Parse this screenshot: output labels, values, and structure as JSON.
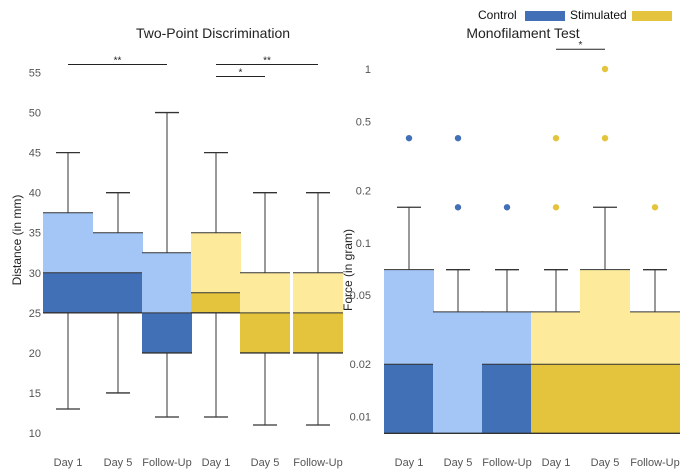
{
  "legend": {
    "entries": [
      {
        "label": "Control",
        "color": "#4270b6"
      },
      {
        "label": "Stimulated",
        "color": "#e3c43c"
      }
    ]
  },
  "colors": {
    "control_dark": "#4270b6",
    "control_light": "#a3c6f7",
    "stim_dark": "#e3c43c",
    "stim_light": "#fdeb9b"
  },
  "chart_data": [
    {
      "type": "box",
      "title": "Two-Point Discrimination",
      "xlabel": "",
      "ylabel": "Distance (in mm)",
      "ylim": [
        10,
        57
      ],
      "yscale": "linear",
      "yticks": [
        10,
        15,
        20,
        25,
        30,
        35,
        40,
        45,
        50,
        55
      ],
      "categories": [
        "Day 1",
        "Day 5",
        "Follow-Up",
        "Day 1",
        "Day 5",
        "Follow-Up"
      ],
      "groups": [
        "Control",
        "Control",
        "Control",
        "Stimulated",
        "Stimulated",
        "Stimulated"
      ],
      "boxes": [
        {
          "min": 13,
          "q1": 25,
          "median": 30,
          "q3": 37.5,
          "max": 45,
          "outliers": []
        },
        {
          "min": 15,
          "q1": 25,
          "median": 30,
          "q3": 35,
          "max": 40,
          "outliers": []
        },
        {
          "min": 12,
          "q1": 20,
          "median": 25,
          "q3": 32.5,
          "max": 50,
          "outliers": []
        },
        {
          "min": 12,
          "q1": 25,
          "median": 27.5,
          "q3": 35,
          "max": 45,
          "outliers": []
        },
        {
          "min": 11,
          "q1": 20,
          "median": 25,
          "q3": 30,
          "max": 40,
          "outliers": []
        },
        {
          "min": 11,
          "q1": 20,
          "median": 25,
          "q3": 30,
          "max": 40,
          "outliers": []
        }
      ],
      "significance": [
        {
          "from": 0,
          "to": 2,
          "label": "**",
          "y": 56
        },
        {
          "from": 3,
          "to": 5,
          "label": "**",
          "y": 56
        },
        {
          "from": 3,
          "to": 4,
          "label": "*",
          "y": 54.5
        }
      ]
    },
    {
      "type": "box",
      "title": "Monofilament Test",
      "xlabel": "",
      "ylabel": "Force (in gram)",
      "ylim": [
        0.007,
        1.35
      ],
      "yscale": "log",
      "yticks": [
        0.01,
        0.02,
        0.05,
        0.1,
        0.2,
        0.5,
        1
      ],
      "ytick_labels": [
        "0.01",
        "0.02",
        "0.05",
        "0.1",
        "0.2",
        "0.5",
        "1"
      ],
      "categories": [
        "Day 1",
        "Day 5",
        "Follow-Up",
        "Day 1",
        "Day 5",
        "Follow-Up"
      ],
      "groups": [
        "Control",
        "Control",
        "Control",
        "Stimulated",
        "Stimulated",
        "Stimulated"
      ],
      "boxes": [
        {
          "min": 0.008,
          "q1": 0.008,
          "median": 0.02,
          "q3": 0.07,
          "max": 0.16,
          "outliers": [
            0.4
          ]
        },
        {
          "min": 0.008,
          "q1": 0.008,
          "median": 0.008,
          "q3": 0.04,
          "max": 0.07,
          "outliers": [
            0.16,
            0.4
          ]
        },
        {
          "min": 0.008,
          "q1": 0.008,
          "median": 0.02,
          "q3": 0.04,
          "max": 0.07,
          "outliers": [
            0.16
          ]
        },
        {
          "min": 0.008,
          "q1": 0.008,
          "median": 0.02,
          "q3": 0.04,
          "max": 0.07,
          "outliers": [
            0.16,
            0.4
          ]
        },
        {
          "min": 0.008,
          "q1": 0.008,
          "median": 0.02,
          "q3": 0.07,
          "max": 0.16,
          "outliers": [
            0.4,
            1
          ]
        },
        {
          "min": 0.008,
          "q1": 0.008,
          "median": 0.02,
          "q3": 0.04,
          "max": 0.07,
          "outliers": [
            0.16
          ]
        }
      ],
      "significance": [
        {
          "from": 3,
          "to": 4,
          "label": "*",
          "y": 1.3
        }
      ]
    }
  ]
}
